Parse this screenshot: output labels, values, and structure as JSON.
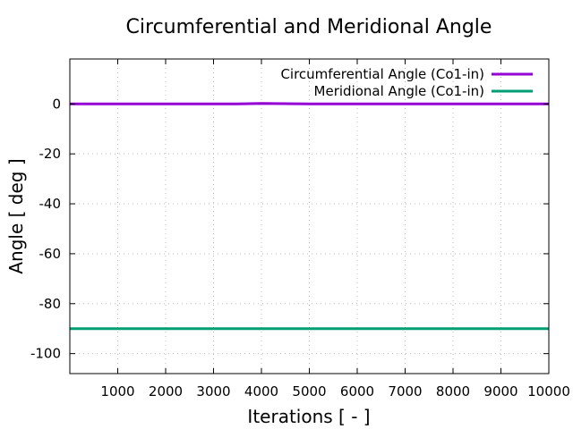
{
  "chart_data": {
    "type": "line",
    "title": "Circumferential and Meridional Angle",
    "xlabel": "Iterations [ - ]",
    "ylabel": "Angle [ deg ]",
    "xlim": [
      0,
      10000
    ],
    "ylim": [
      -108,
      18
    ],
    "xticks": [
      1000,
      2000,
      3000,
      4000,
      5000,
      6000,
      7000,
      8000,
      9000,
      10000
    ],
    "yticks": [
      0,
      -20,
      -40,
      -60,
      -80,
      -100
    ],
    "grid": true,
    "legend_position": "top-right",
    "series": [
      {
        "name": "Circumferential Angle (Co1-in)",
        "color": "#9400d3",
        "x": [
          0,
          3500,
          4000,
          5000,
          10000
        ],
        "y": [
          0,
          0,
          0.2,
          0,
          0
        ]
      },
      {
        "name": "Meridional Angle (Co1-in)",
        "color": "#009e73",
        "x": [
          0,
          10000
        ],
        "y": [
          -90,
          -90
        ]
      }
    ]
  }
}
